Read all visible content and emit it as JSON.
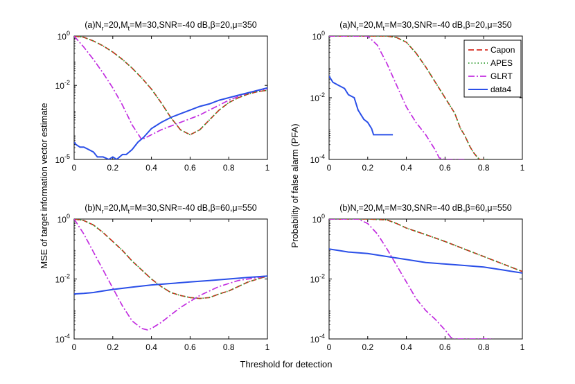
{
  "figure": {
    "shared_ylabel": "MSE of target information vector estimate",
    "shared_xlabel": "Threshold for detection",
    "right_ylabel": "Probability of false alarm (PFA)"
  },
  "legend": {
    "location": "top-right of top-right panel",
    "entries": [
      {
        "name": "Capon",
        "color": "#d62a1e",
        "style": "dashed"
      },
      {
        "name": "APES",
        "color": "#2e9a2e",
        "style": "dotted"
      },
      {
        "name": "GLRT",
        "color": "#c22ee0",
        "style": "dashdot"
      },
      {
        "name": "data4",
        "color": "#2a4fe8",
        "style": "solid"
      }
    ]
  },
  "chart_data": [
    {
      "id": "mse_a",
      "type": "line",
      "title_parts": [
        "(a)N",
        "r",
        "=20,M",
        "t",
        "=M=30,SNR=-40 dB,β=20,μ=350"
      ],
      "xlabel": "",
      "ylabel": "MSE of target information vector estimate",
      "xlim": [
        0,
        1
      ],
      "ylim_log10": [
        -5,
        0
      ],
      "yscale": "log",
      "xticks": [
        "0",
        "0.2",
        "0.4",
        "0.6",
        "0.8",
        "1"
      ],
      "yticks": [
        {
          "exp": "0",
          "v": 0
        },
        {
          "exp": "-2",
          "v": -2
        },
        {
          "exp": "-5",
          "v": -5
        }
      ],
      "series": [
        {
          "name": "Capon",
          "x": [
            0,
            0.05,
            0.1,
            0.15,
            0.2,
            0.25,
            0.3,
            0.35,
            0.4,
            0.45,
            0.5,
            0.55,
            0.6,
            0.65,
            0.7,
            0.75,
            0.8,
            0.85,
            0.9,
            0.95,
            1
          ],
          "log10y": [
            0,
            -0.05,
            -0.2,
            -0.4,
            -0.65,
            -0.95,
            -1.3,
            -1.7,
            -2.15,
            -2.7,
            -3.3,
            -3.8,
            -4.0,
            -3.8,
            -3.4,
            -3.0,
            -2.7,
            -2.5,
            -2.35,
            -2.25,
            -2.2
          ]
        },
        {
          "name": "APES",
          "x": [
            0,
            0.05,
            0.1,
            0.15,
            0.2,
            0.25,
            0.3,
            0.35,
            0.4,
            0.45,
            0.5,
            0.55,
            0.6,
            0.65,
            0.7,
            0.75,
            0.8,
            0.85,
            0.9,
            0.95,
            1
          ],
          "log10y": [
            0,
            -0.05,
            -0.2,
            -0.4,
            -0.65,
            -0.95,
            -1.3,
            -1.7,
            -2.15,
            -2.7,
            -3.3,
            -3.8,
            -4.0,
            -3.8,
            -3.4,
            -3.0,
            -2.7,
            -2.5,
            -2.35,
            -2.25,
            -2.2
          ]
        },
        {
          "name": "GLRT",
          "x": [
            0,
            0.05,
            0.1,
            0.15,
            0.2,
            0.25,
            0.3,
            0.35,
            0.4,
            0.45,
            0.5,
            0.55,
            0.6,
            0.65,
            0.7,
            0.75,
            0.8,
            0.85,
            0.9,
            0.95,
            1
          ],
          "log10y": [
            0,
            -0.45,
            -0.95,
            -1.5,
            -2.1,
            -2.8,
            -3.6,
            -4.2,
            -4.0,
            -3.8,
            -3.65,
            -3.5,
            -3.35,
            -3.2,
            -3.0,
            -2.8,
            -2.6,
            -2.45,
            -2.3,
            -2.2,
            -2.15
          ]
        },
        {
          "name": "data4",
          "x": [
            0,
            0.01,
            0.03,
            0.05,
            0.1,
            0.12,
            0.15,
            0.18,
            0.2,
            0.22,
            0.25,
            0.27,
            0.3,
            0.33,
            0.36,
            0.4,
            0.45,
            0.5,
            0.55,
            0.6,
            0.65,
            0.7,
            0.75,
            0.8,
            0.85,
            0.9,
            0.95,
            1
          ],
          "log10y": [
            -4.3,
            -4.4,
            -4.5,
            -4.5,
            -4.7,
            -4.9,
            -4.9,
            -5.0,
            -4.9,
            -5.0,
            -4.8,
            -4.8,
            -4.6,
            -4.3,
            -4.1,
            -3.75,
            -3.5,
            -3.3,
            -3.15,
            -3.0,
            -2.85,
            -2.75,
            -2.6,
            -2.5,
            -2.4,
            -2.3,
            -2.2,
            -2.1
          ]
        }
      ]
    },
    {
      "id": "pfa_a",
      "type": "line",
      "title_parts": [
        "(a)N",
        "r",
        "=20,M",
        "t",
        "=M=30,SNR=-40 dB,β=20,μ=350"
      ],
      "xlabel": "",
      "ylabel": "",
      "xlim": [
        0,
        1
      ],
      "ylim_log10": [
        -4,
        0
      ],
      "yscale": "log",
      "xticks": [
        "0",
        "0.2",
        "0.4",
        "0.6",
        "0.8",
        "1"
      ],
      "yticks": [
        {
          "exp": "0",
          "v": 0
        },
        {
          "exp": "-2",
          "v": -2
        },
        {
          "exp": "-4",
          "v": -4
        }
      ],
      "series": [
        {
          "name": "Capon",
          "x": [
            0,
            0.3,
            0.35,
            0.4,
            0.45,
            0.5,
            0.55,
            0.6,
            0.65,
            0.68,
            0.7,
            0.73,
            0.75,
            0.77,
            0.78,
            0.8,
            0.82
          ],
          "log10y": [
            0,
            0,
            -0.05,
            -0.2,
            -0.55,
            -1.0,
            -1.5,
            -2.0,
            -2.5,
            -3.0,
            -3.2,
            -3.6,
            -3.8,
            -3.95,
            -4.0,
            -4.0,
            -4.0
          ]
        },
        {
          "name": "APES",
          "x": [
            0,
            0.3,
            0.35,
            0.4,
            0.45,
            0.5,
            0.55,
            0.6,
            0.65,
            0.68,
            0.7,
            0.73,
            0.75,
            0.77,
            0.78,
            0.8,
            0.82
          ],
          "log10y": [
            0,
            0,
            -0.05,
            -0.2,
            -0.55,
            -1.0,
            -1.5,
            -2.0,
            -2.5,
            -3.0,
            -3.2,
            -3.6,
            -3.8,
            -3.95,
            -4.0,
            -4.0,
            -4.0
          ]
        },
        {
          "name": "GLRT",
          "x": [
            0,
            0.2,
            0.25,
            0.3,
            0.35,
            0.4,
            0.45,
            0.5,
            0.55,
            0.57,
            0.6,
            0.65,
            0.7
          ],
          "log10y": [
            0,
            0,
            -0.3,
            -0.9,
            -1.6,
            -2.3,
            -2.8,
            -3.2,
            -3.7,
            -3.95,
            -4.0,
            -4.0,
            -4.0
          ]
        },
        {
          "name": "data4",
          "x": [
            0,
            0.02,
            0.05,
            0.08,
            0.1,
            0.13,
            0.15,
            0.18,
            0.2,
            0.22,
            0.23,
            0.25,
            0.28,
            0.3,
            0.33
          ],
          "log10y": [
            -1.3,
            -1.5,
            -1.6,
            -1.7,
            -1.9,
            -2.0,
            -2.4,
            -2.7,
            -2.8,
            -3.0,
            -3.2,
            -3.2,
            -3.2,
            -3.2,
            -3.2
          ]
        }
      ]
    },
    {
      "id": "mse_b",
      "type": "line",
      "title_parts": [
        "(b)N",
        "r",
        "=20,M",
        "t",
        "=M=30,SNR=-40 dB,β=60,μ=550"
      ],
      "xlabel": "",
      "ylabel": "",
      "xlim": [
        0,
        1
      ],
      "ylim_log10": [
        -4,
        0
      ],
      "yscale": "log",
      "xticks": [
        "0",
        "0.2",
        "0.4",
        "0.6",
        "0.8",
        "1"
      ],
      "yticks": [
        {
          "exp": "0",
          "v": 0
        },
        {
          "exp": "-2",
          "v": -2
        },
        {
          "exp": "-4",
          "v": -4
        }
      ],
      "series": [
        {
          "name": "Capon",
          "x": [
            0,
            0.05,
            0.1,
            0.15,
            0.2,
            0.25,
            0.3,
            0.35,
            0.4,
            0.45,
            0.5,
            0.55,
            0.6,
            0.65,
            0.7,
            0.75,
            0.8,
            0.85,
            0.9,
            0.95,
            1
          ],
          "log10y": [
            0,
            -0.05,
            -0.2,
            -0.45,
            -0.75,
            -1.05,
            -1.4,
            -1.7,
            -2.0,
            -2.25,
            -2.45,
            -2.55,
            -2.62,
            -2.65,
            -2.62,
            -2.5,
            -2.4,
            -2.25,
            -2.1,
            -2.0,
            -1.9
          ]
        },
        {
          "name": "APES",
          "x": [
            0,
            0.05,
            0.1,
            0.15,
            0.2,
            0.25,
            0.3,
            0.35,
            0.4,
            0.45,
            0.5,
            0.55,
            0.6,
            0.65,
            0.7,
            0.75,
            0.8,
            0.85,
            0.9,
            0.95,
            1
          ],
          "log10y": [
            0,
            -0.05,
            -0.2,
            -0.45,
            -0.75,
            -1.05,
            -1.4,
            -1.7,
            -2.0,
            -2.25,
            -2.45,
            -2.55,
            -2.62,
            -2.65,
            -2.62,
            -2.5,
            -2.4,
            -2.25,
            -2.1,
            -2.0,
            -1.9
          ]
        },
        {
          "name": "GLRT",
          "x": [
            0,
            0.05,
            0.1,
            0.15,
            0.2,
            0.25,
            0.3,
            0.35,
            0.38,
            0.4,
            0.45,
            0.5,
            0.55,
            0.6,
            0.65,
            0.7,
            0.75,
            0.8,
            0.85,
            0.9,
            0.95,
            1
          ],
          "log10y": [
            0,
            -0.5,
            -1.1,
            -1.7,
            -2.3,
            -2.9,
            -3.4,
            -3.65,
            -3.7,
            -3.65,
            -3.45,
            -3.2,
            -2.95,
            -2.75,
            -2.55,
            -2.4,
            -2.25,
            -2.15,
            -2.05,
            -2.0,
            -1.95,
            -1.9
          ]
        },
        {
          "name": "data4",
          "x": [
            0,
            0.05,
            0.1,
            0.15,
            0.2,
            0.3,
            0.4,
            0.5,
            0.6,
            0.7,
            0.8,
            0.9,
            1
          ],
          "log10y": [
            -2.5,
            -2.48,
            -2.45,
            -2.4,
            -2.35,
            -2.27,
            -2.2,
            -2.15,
            -2.1,
            -2.05,
            -2.0,
            -1.95,
            -1.9
          ]
        }
      ]
    },
    {
      "id": "pfa_b",
      "type": "line",
      "title_parts": [
        "(b)N",
        "r",
        "=20,M",
        "t",
        "=M=30,SNR=-40 dB,β=60,μ=550"
      ],
      "xlabel": "",
      "ylabel": "",
      "xlim": [
        0,
        1
      ],
      "ylim_log10": [
        -4,
        0
      ],
      "yscale": "log",
      "xticks": [
        "0",
        "0.2",
        "0.4",
        "0.6",
        "0.8",
        "1"
      ],
      "yticks": [
        {
          "exp": "0",
          "v": 0
        },
        {
          "exp": "-2",
          "v": -2
        },
        {
          "exp": "-4",
          "v": -4
        }
      ],
      "series": [
        {
          "name": "Capon",
          "x": [
            0,
            0.1,
            0.2,
            0.3,
            0.35,
            0.4,
            0.5,
            0.6,
            0.7,
            0.8,
            0.9,
            1
          ],
          "log10y": [
            0,
            0,
            0,
            -0.03,
            -0.15,
            -0.3,
            -0.52,
            -0.75,
            -1.0,
            -1.25,
            -1.5,
            -1.75
          ]
        },
        {
          "name": "APES",
          "x": [
            0,
            0.1,
            0.2,
            0.3,
            0.35,
            0.4,
            0.5,
            0.6,
            0.7,
            0.8,
            0.9,
            1
          ],
          "log10y": [
            0,
            0,
            0,
            -0.03,
            -0.15,
            -0.3,
            -0.52,
            -0.75,
            -1.0,
            -1.25,
            -1.5,
            -1.75
          ]
        },
        {
          "name": "GLRT",
          "x": [
            0,
            0.15,
            0.2,
            0.25,
            0.3,
            0.35,
            0.4,
            0.45,
            0.5,
            0.55,
            0.6,
            0.63,
            0.65,
            0.7,
            0.75,
            0.8,
            0.85
          ],
          "log10y": [
            0,
            0,
            -0.15,
            -0.5,
            -1.0,
            -1.55,
            -2.1,
            -2.65,
            -3.05,
            -3.35,
            -3.7,
            -3.95,
            -4.0,
            -4.0,
            -4.0,
            -4.0,
            -4.0
          ]
        },
        {
          "name": "data4",
          "x": [
            0,
            0.05,
            0.1,
            0.2,
            0.3,
            0.4,
            0.5,
            0.6,
            0.7,
            0.8,
            0.9,
            0.95,
            1
          ],
          "log10y": [
            -1.0,
            -1.05,
            -1.1,
            -1.15,
            -1.25,
            -1.35,
            -1.45,
            -1.5,
            -1.55,
            -1.6,
            -1.7,
            -1.75,
            -1.8
          ]
        }
      ]
    }
  ]
}
